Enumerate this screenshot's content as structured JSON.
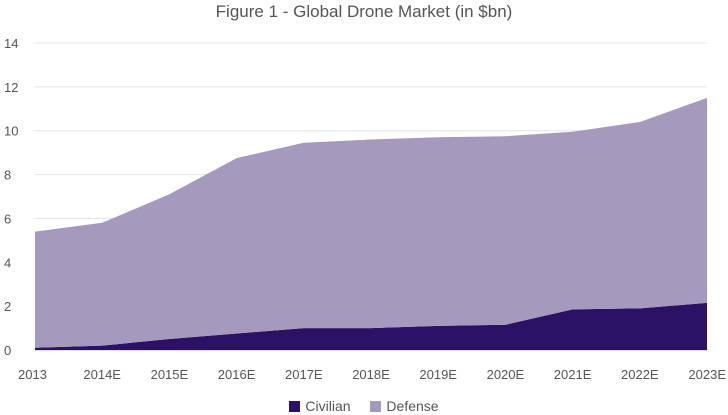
{
  "chart_data": {
    "type": "area",
    "stacked": true,
    "title": "Figure 1 - Global Drone Market (in $bn)",
    "xlabel": "",
    "ylabel": "",
    "categories": [
      "2013",
      "2014E",
      "2015E",
      "2016E",
      "2017E",
      "2018E",
      "2019E",
      "2020E",
      "2021E",
      "2022E",
      "2023E"
    ],
    "ylim": [
      0,
      14
    ],
    "yticks": [
      0,
      2,
      4,
      6,
      8,
      10,
      12,
      14
    ],
    "grid": true,
    "legend_position": "bottom",
    "series": [
      {
        "name": "Civilian",
        "color": "#2c1264",
        "values": [
          0.1,
          0.2,
          0.5,
          0.75,
          1.0,
          1.0,
          1.1,
          1.15,
          1.85,
          1.9,
          2.15
        ]
      },
      {
        "name": "Defense",
        "color": "#a59abe",
        "values": [
          5.3,
          5.6,
          6.6,
          8.0,
          8.45,
          8.6,
          8.6,
          8.6,
          8.1,
          8.5,
          9.35
        ]
      }
    ]
  }
}
